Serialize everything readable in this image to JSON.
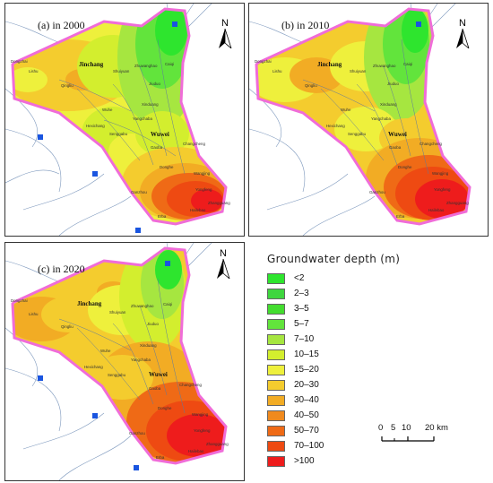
{
  "panels": [
    {
      "title": "(a) in 2000"
    },
    {
      "title": "(b) in 2010"
    },
    {
      "title": "(c) in 2020"
    }
  ],
  "north_label": "N",
  "cities": {
    "jinchang": "Jinchang",
    "wuwei": "Wuwei",
    "dongzhai": "Dongzhai",
    "lishu": "Lishu",
    "qingliu": "Qingliu",
    "shuiyuan": "Shuiyuan",
    "zhuwanghao": "Zhuwanghao",
    "caiqi": "Caiqi",
    "jiuduo": "Jiuduo",
    "xinduang": "Xinduang",
    "wuhe": "Wuhe",
    "yangchaba": "Yangchaba",
    "hexichang": "Hexichang",
    "senggabu": "Senggabu",
    "gaoba": "Gaoba",
    "changcheng": "Changcheng",
    "donghe": "Donghe",
    "wangjing": "Wangjing",
    "yongfeng": "Yongfeng",
    "ganzhou": "Ganzhou",
    "huangwei": "Huangwei",
    "erba": "Erba",
    "hailebao": "Hailebao",
    "zhangguang": "Zhangguang"
  },
  "legend": {
    "title": "Groundwater depth (m)",
    "classes": [
      {
        "label": "<2",
        "color": "#2ee52e"
      },
      {
        "label": "2–3",
        "color": "#3ed63e"
      },
      {
        "label": "3–5",
        "color": "#43dd2f"
      },
      {
        "label": "5–7",
        "color": "#62e43c"
      },
      {
        "label": "7–10",
        "color": "#a6e640"
      },
      {
        "label": "10–15",
        "color": "#d3ee2e"
      },
      {
        "label": "15–20",
        "color": "#eef03c"
      },
      {
        "label": "20–30",
        "color": "#f4cc2e"
      },
      {
        "label": "30–40",
        "color": "#f2ac24"
      },
      {
        "label": "40–50",
        "color": "#f08a1e"
      },
      {
        "label": "50–70",
        "color": "#ef6a16"
      },
      {
        "label": "70–100",
        "color": "#ee4a12"
      },
      {
        "label": ">100",
        "color": "#ee1c1c"
      }
    ]
  },
  "scale_bar": {
    "t0": "0",
    "t5": "5",
    "t10": "10",
    "t20": "20 km"
  },
  "colors": {
    "boundary": "#f06cd8",
    "river": "#6f8fb8",
    "station": "#1a55e0",
    "town_dot": "#666666"
  }
}
